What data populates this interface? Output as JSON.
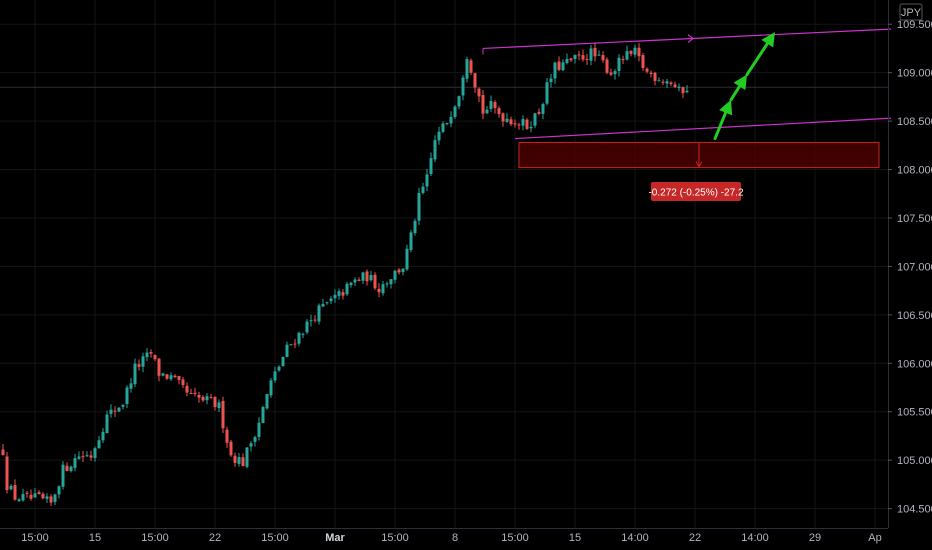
{
  "currency_badge": "JPY",
  "measure_label": "-0.272 (-0.25%) -27.2",
  "colors": {
    "background": "#000000",
    "bull": "#26a69a",
    "bear": "#ef5350",
    "channel": "#cc33cc",
    "arrow": "#22cc22",
    "zone": "#4a0000",
    "zone_border": "#cc2222",
    "label_bg": "#c62828"
  },
  "chart_data": {
    "type": "candlestick",
    "title": "",
    "ylim": [
      104.3,
      109.75
    ],
    "y_ticks": [
      104.5,
      105.0,
      105.5,
      106.0,
      106.5,
      107.0,
      107.5,
      108.0,
      108.5,
      109.0,
      109.5
    ],
    "y_tick_labels": [
      "104.500",
      "105.000",
      "105.500",
      "106.000",
      "106.500",
      "107.000",
      "107.500",
      "108.000",
      "108.500",
      "109.000",
      "109.500"
    ],
    "x_tick_labels": [
      "15:00",
      "15",
      "15:00",
      "22",
      "15:00",
      "Mar",
      "15:00",
      "8",
      "15:00",
      "15",
      "14:00",
      "22",
      "14:00",
      "29",
      "Ap"
    ],
    "x_tick_index": [
      8,
      23,
      38,
      53,
      68,
      83,
      98,
      113,
      128,
      143,
      158,
      173,
      188,
      203,
      218
    ],
    "price_path": [
      [
        0,
        105.1
      ],
      [
        1,
        104.75
      ],
      [
        3,
        104.62
      ],
      [
        6,
        104.6
      ],
      [
        9,
        104.6
      ],
      [
        12,
        104.55
      ],
      [
        15,
        104.9
      ],
      [
        19,
        105.05
      ],
      [
        22,
        105.05
      ],
      [
        26,
        105.45
      ],
      [
        30,
        105.6
      ],
      [
        33,
        105.95
      ],
      [
        37,
        106.1
      ],
      [
        39,
        105.9
      ],
      [
        42,
        105.85
      ],
      [
        47,
        105.65
      ],
      [
        52,
        105.6
      ],
      [
        54,
        105.55
      ],
      [
        57,
        105.05
      ],
      [
        60,
        104.98
      ],
      [
        64,
        105.4
      ],
      [
        67,
        105.8
      ],
      [
        71,
        106.15
      ],
      [
        75,
        106.35
      ],
      [
        79,
        106.55
      ],
      [
        84,
        106.7
      ],
      [
        88,
        106.85
      ],
      [
        91,
        106.9
      ],
      [
        94,
        106.78
      ],
      [
        97,
        106.9
      ],
      [
        100,
        107.0
      ],
      [
        102,
        107.3
      ],
      [
        104,
        107.7
      ],
      [
        106,
        107.9
      ],
      [
        108,
        108.3
      ],
      [
        111,
        108.5
      ],
      [
        114,
        108.8
      ],
      [
        116,
        109.2
      ],
      [
        118,
        108.9
      ],
      [
        120,
        108.6
      ],
      [
        122,
        108.65
      ],
      [
        125,
        108.55
      ],
      [
        128,
        108.5
      ],
      [
        131,
        108.45
      ],
      [
        134,
        108.6
      ],
      [
        136,
        108.85
      ],
      [
        138,
        109.05
      ],
      [
        141,
        109.1
      ],
      [
        144,
        109.15
      ],
      [
        147,
        109.2
      ],
      [
        150,
        109.1
      ],
      [
        152,
        109.0
      ],
      [
        155,
        109.15
      ],
      [
        158,
        109.2
      ],
      [
        161,
        109.0
      ],
      [
        164,
        108.95
      ],
      [
        167,
        108.9
      ],
      [
        169,
        108.8
      ],
      [
        171,
        108.85
      ]
    ],
    "channel_upper": {
      "start": [
        120,
        109.25
      ],
      "end": [
        222,
        109.45
      ]
    },
    "channel_lower": {
      "start": [
        128,
        108.32
      ],
      "end": [
        222,
        108.53
      ]
    },
    "support_zone": {
      "from_index": 129,
      "to_index": 219,
      "high": 108.28,
      "low": 108.02
    },
    "current_price": 108.85,
    "projection_arrows": [
      {
        "from": [
          178,
          108.32
        ],
        "to": [
          182,
          108.72
        ]
      },
      {
        "from": [
          182,
          108.72
        ],
        "to": [
          186,
          108.98
        ]
      },
      {
        "from": [
          186,
          108.98
        ],
        "to": [
          193,
          109.42
        ]
      }
    ]
  }
}
